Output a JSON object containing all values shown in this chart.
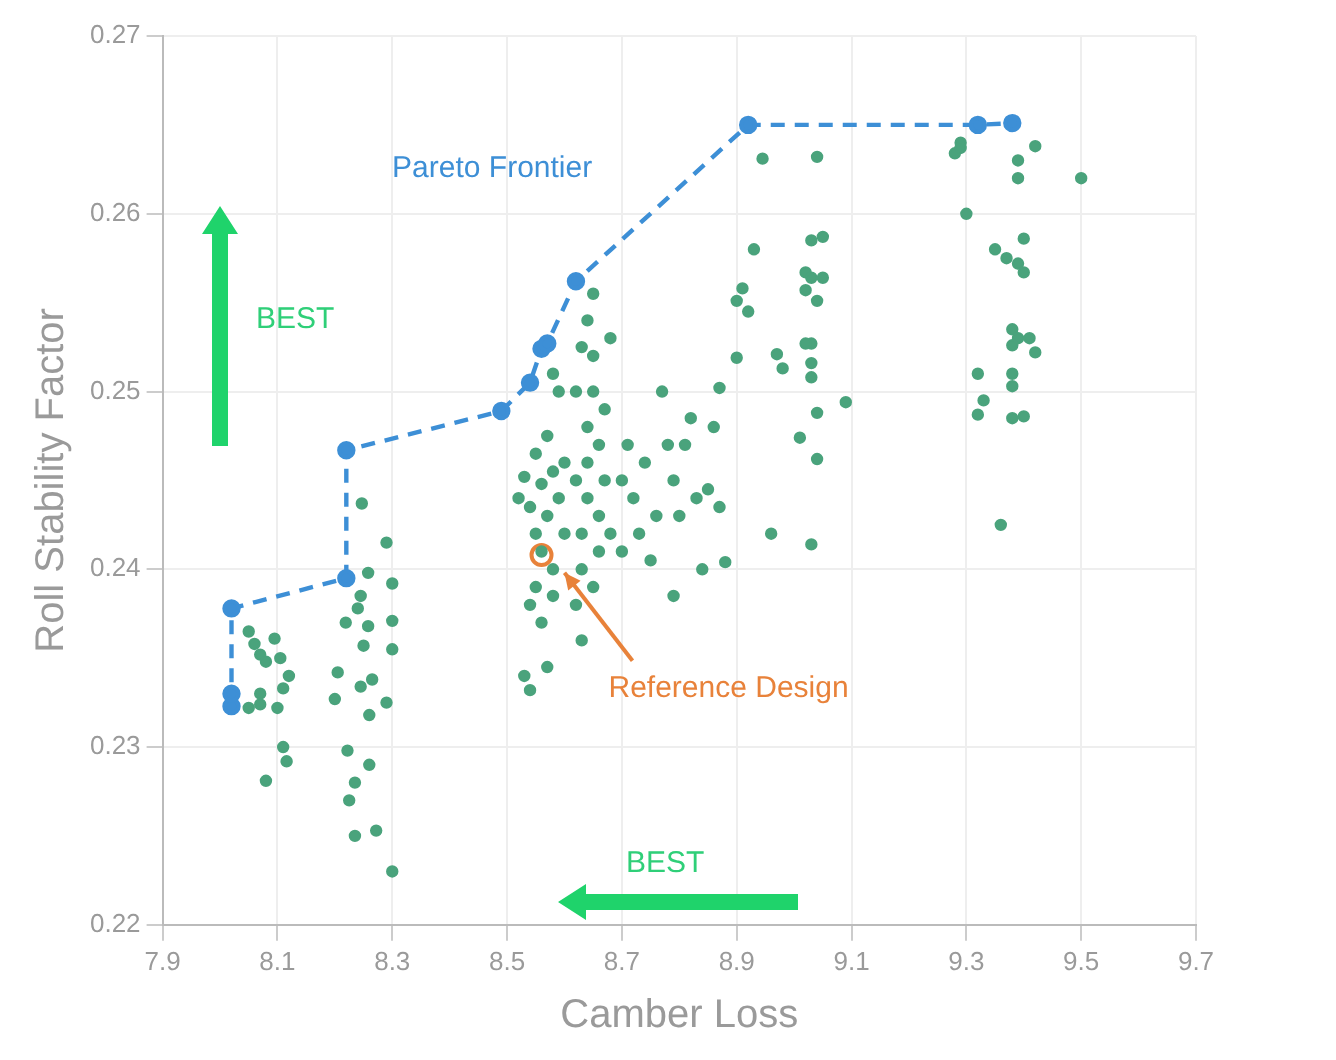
{
  "chart_data": {
    "type": "scatter",
    "xlabel": "Camber Loss",
    "ylabel": "Roll Stability Factor",
    "xlim": [
      7.9,
      9.7
    ],
    "xticks": [
      7.9,
      8.1,
      8.3,
      8.5,
      8.7,
      8.9,
      9.1,
      9.3,
      9.5,
      9.7
    ],
    "ylim": [
      0.22,
      0.27
    ],
    "yticks": [
      0.22,
      0.23,
      0.24,
      0.25,
      0.26,
      0.27
    ],
    "grid": true,
    "marker": "circle",
    "annotations": [
      "BEST",
      "BEST",
      {
        "text": "Reference Design",
        "x": 8.6,
        "y": 0.2398
      }
    ],
    "series": [
      {
        "color": "#4aa37c",
        "x": [
          8.05,
          8.06,
          8.07,
          8.08,
          8.095,
          8.07,
          8.105,
          8.11,
          8.07,
          8.1,
          8.11,
          8.116,
          8.08,
          8.05,
          8.12,
          8.247,
          8.29,
          8.258,
          8.3,
          8.219,
          8.258,
          8.3,
          8.25,
          8.3,
          8.205,
          8.245,
          8.265,
          8.29,
          8.2,
          8.26,
          8.222,
          8.26,
          8.235,
          8.225,
          8.272,
          8.235,
          8.3,
          8.24,
          8.245,
          8.52,
          8.53,
          8.54,
          8.55,
          8.55,
          8.56,
          8.56,
          8.57,
          8.57,
          8.58,
          8.58,
          8.55,
          8.54,
          8.56,
          8.59,
          8.53,
          8.54,
          8.57,
          8.58,
          8.6,
          8.6,
          8.59,
          8.58,
          8.62,
          8.63,
          8.63,
          8.64,
          8.64,
          8.64,
          8.65,
          8.65,
          8.64,
          8.65,
          8.66,
          8.66,
          8.67,
          8.66,
          8.65,
          8.63,
          8.62,
          8.63,
          8.67,
          8.68,
          8.68,
          8.62,
          8.7,
          8.72,
          8.71,
          8.74,
          8.76,
          8.7,
          8.73,
          8.77,
          8.79,
          8.81,
          8.82,
          8.83,
          8.8,
          8.85,
          8.87,
          8.84,
          8.75,
          8.78,
          8.86,
          8.96,
          9.03,
          8.79,
          8.88,
          8.945,
          9.04,
          8.93,
          9.03,
          9.05,
          9.02,
          9.03,
          9.05,
          9.02,
          9.04,
          8.91,
          8.9,
          8.92,
          9.03,
          9.03,
          9.02,
          8.97,
          8.9,
          8.98,
          9.03,
          8.87,
          9.09,
          9.04,
          9.01,
          9.04,
          9.28,
          9.29,
          9.29,
          9.42,
          9.39,
          9.39,
          9.5,
          9.3,
          9.4,
          9.35,
          9.37,
          9.39,
          9.4,
          9.38,
          9.39,
          9.38,
          9.41,
          9.42,
          9.32,
          9.38,
          9.38,
          9.33,
          9.32,
          9.38,
          9.4,
          9.36
        ],
        "values": [
          0.2365,
          0.2358,
          0.2352,
          0.2348,
          0.2361,
          0.2324,
          0.235,
          0.2333,
          0.233,
          0.2322,
          0.23,
          0.2292,
          0.2281,
          0.2322,
          0.234,
          0.2437,
          0.2415,
          0.2398,
          0.2392,
          0.237,
          0.2368,
          0.2371,
          0.2357,
          0.2355,
          0.2342,
          0.2334,
          0.2338,
          0.2325,
          0.2327,
          0.2318,
          0.2298,
          0.229,
          0.228,
          0.227,
          0.2253,
          0.225,
          0.223,
          0.2378,
          0.2385,
          0.244,
          0.2452,
          0.2435,
          0.2465,
          0.242,
          0.2448,
          0.241,
          0.243,
          0.2475,
          0.24,
          0.2455,
          0.239,
          0.238,
          0.237,
          0.244,
          0.234,
          0.2332,
          0.2345,
          0.2385,
          0.242,
          0.246,
          0.25,
          0.251,
          0.238,
          0.24,
          0.242,
          0.244,
          0.246,
          0.248,
          0.25,
          0.252,
          0.254,
          0.2555,
          0.243,
          0.241,
          0.245,
          0.247,
          0.239,
          0.236,
          0.25,
          0.2525,
          0.249,
          0.242,
          0.253,
          0.245,
          0.245,
          0.244,
          0.247,
          0.246,
          0.243,
          0.241,
          0.242,
          0.25,
          0.245,
          0.247,
          0.2485,
          0.244,
          0.243,
          0.2445,
          0.2435,
          0.24,
          0.2405,
          0.247,
          0.248,
          0.242,
          0.2414,
          0.2385,
          0.2404,
          0.2631,
          0.2632,
          0.258,
          0.2585,
          0.2587,
          0.2567,
          0.2564,
          0.2564,
          0.2557,
          0.2551,
          0.2558,
          0.2551,
          0.2545,
          0.2527,
          0.2516,
          0.2527,
          0.2521,
          0.2519,
          0.2513,
          0.2508,
          0.2502,
          0.2494,
          0.2488,
          0.2474,
          0.2462,
          0.2634,
          0.264,
          0.2637,
          0.2638,
          0.263,
          0.262,
          0.262,
          0.26,
          0.2586,
          0.258,
          0.2575,
          0.2572,
          0.2567,
          0.2535,
          0.253,
          0.2526,
          0.253,
          0.2522,
          0.251,
          0.251,
          0.2503,
          0.2495,
          0.2487,
          0.2485,
          0.2486,
          0.2425
        ]
      },
      {
        "type": "line",
        "name": "Pareto Frontier",
        "color": "#3d8fd6",
        "line_style": "dashed",
        "x": [
          8.02,
          8.02,
          8.02,
          8.22,
          8.22,
          8.49,
          8.54,
          8.56,
          8.57,
          8.62,
          8.92,
          9.32,
          9.38
        ],
        "values": [
          0.2323,
          0.233,
          0.2378,
          0.2395,
          0.2467,
          0.2489,
          0.2505,
          0.2524,
          0.2527,
          0.2562,
          0.265,
          0.265,
          0.2651
        ]
      },
      {
        "color": "#e8823a",
        "x": [
          8.56
        ],
        "values": [
          0.2408
        ]
      }
    ]
  }
}
